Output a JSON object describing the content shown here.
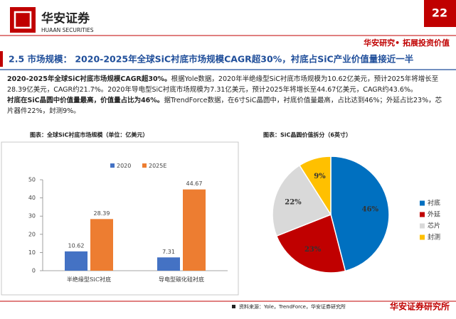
{
  "header": {
    "logo_text": "华安证券",
    "logo_subtext": "HUAAN SECURITIES",
    "page_number": "22",
    "slogan": "华安研究• 拓展投资价值"
  },
  "section_title": "2.5 市场规模： 2020-2025年全球SiC衬底市场规模CAGR超30%，衬底占SiC产业价值量接近一半",
  "bullets": [
    {
      "bold": "2020-2025年全球SiC衬底市场规模CAGR超30%。",
      "text": "根据Yole数据，2020年半绝缘型SiC衬底市场规模为10.62亿美元，预计2025年将增长至28.39亿美元，CAGR约21.7%。2020年导电型SiC衬底市场规模为7.31亿美元，预计2025年将增长至44.67亿美元，CAGR约43.6%。"
    },
    {
      "bold": "衬底在SiC晶圆中价值量最高，价值量占比为46%。",
      "text": "据TrendForce数据，在6寸SiC晶圆中，衬底价值量最高，占比达到46%；外延占比23%，芯片器件22%，封测9%。"
    }
  ],
  "chart_data": [
    {
      "type": "bar",
      "title": "图表：全球SiC衬底市场规模（单位：亿美元）",
      "categories": [
        "半绝缘型SiC衬底",
        "导电型碳化硅衬底"
      ],
      "series": [
        {
          "name": "2020",
          "color": "#4472c4",
          "values": [
            10.62,
            7.31
          ]
        },
        {
          "name": "2025E",
          "color": "#ed7d31",
          "values": [
            28.39,
            44.67
          ]
        }
      ],
      "ylim": [
        0,
        50
      ],
      "yticks": [
        0,
        10,
        20,
        30,
        40,
        50
      ],
      "legend": "top"
    },
    {
      "type": "pie",
      "title": "图表：SiC晶圆价值拆分（6英寸）",
      "categories": [
        "衬底",
        "外延",
        "芯片",
        "封测"
      ],
      "values": [
        46,
        23,
        22,
        9
      ],
      "value_labels": [
        "46%",
        "23%",
        "22%",
        "9%"
      ],
      "colors": [
        "#0070c0",
        "#c00000",
        "#d9d9d9",
        "#ffc000"
      ],
      "legend": "right"
    }
  ],
  "footer": {
    "source": "资料来源：Yole，TrendForce，华安证券研究所",
    "brand": "华安证券研究所"
  }
}
